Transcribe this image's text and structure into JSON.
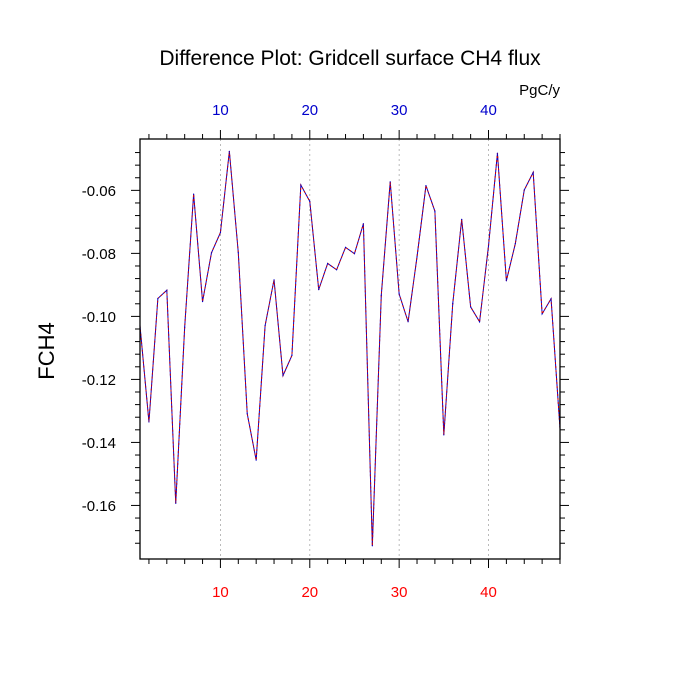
{
  "chart_data": {
    "type": "line",
    "title": "Difference Plot: Gridcell surface CH4 flux",
    "units": "PgC/y",
    "ylabel": "FCH4",
    "xlabel": "",
    "xlim": [
      1,
      48
    ],
    "ylim": [
      -0.177,
      -0.0437
    ],
    "x_ticks": [
      10,
      20,
      30,
      40
    ],
    "x_tick_labels": [
      "10",
      "20",
      "30",
      "40"
    ],
    "y_ticks": [
      -0.06,
      -0.08,
      -0.1,
      -0.12,
      -0.14,
      -0.16
    ],
    "y_tick_labels": [
      "-0.06",
      "-0.08",
      "-0.10",
      "-0.12",
      "-0.14",
      "-0.16"
    ],
    "grid": "vertical dashed at x ticks",
    "series": [
      {
        "line_color": "#0000cc",
        "dash_color": "#cc0000",
        "x": [
          1,
          2,
          3,
          4,
          5,
          6,
          7,
          8,
          9,
          10,
          11,
          12,
          13,
          14,
          15,
          16,
          17,
          18,
          19,
          20,
          21,
          22,
          23,
          24,
          25,
          26,
          27,
          28,
          29,
          30,
          31,
          32,
          33,
          34,
          35,
          36,
          37,
          38,
          39,
          40,
          41,
          42,
          43,
          44,
          45,
          46,
          47,
          48
        ],
        "values": [
          -0.103,
          -0.1335,
          -0.0943,
          -0.0917,
          -0.1593,
          -0.1034,
          -0.0612,
          -0.0953,
          -0.0798,
          -0.0734,
          -0.0476,
          -0.0798,
          -0.1309,
          -0.1456,
          -0.1029,
          -0.0884,
          -0.1188,
          -0.1124,
          -0.0583,
          -0.0635,
          -0.0915,
          -0.0832,
          -0.0852,
          -0.0781,
          -0.0801,
          -0.0706,
          -0.1728,
          -0.0933,
          -0.0573,
          -0.0929,
          -0.1017,
          -0.0811,
          -0.0585,
          -0.0666,
          -0.1376,
          -0.0959,
          -0.0692,
          -0.097,
          -0.1017,
          -0.0776,
          -0.0482,
          -0.0887,
          -0.0769,
          -0.0599,
          -0.0543,
          -0.0992,
          -0.0944,
          -0.1356
        ]
      }
    ],
    "colors": {
      "top_tick_labels": "#0000cc",
      "bottom_tick_labels": "#ff0000",
      "axis": "#000000",
      "grid": "#aaaaaa"
    }
  }
}
